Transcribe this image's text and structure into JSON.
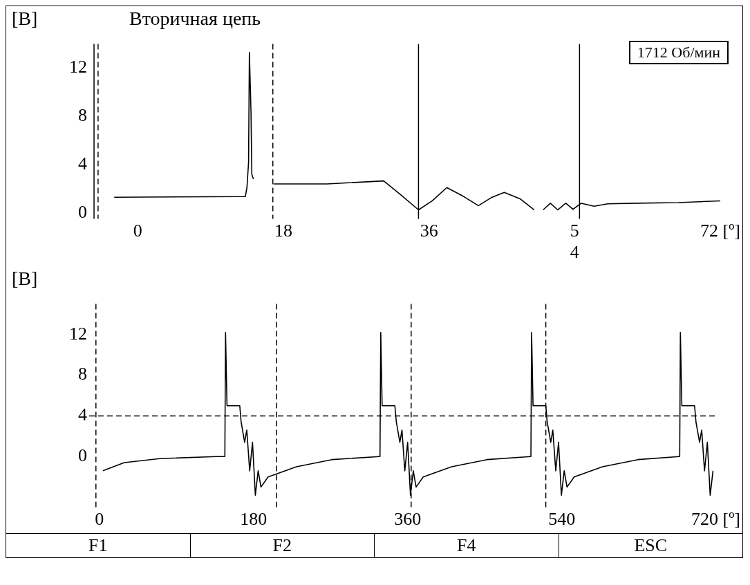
{
  "chart_data": [
    {
      "type": "line",
      "title": "Вторичная цепь",
      "ylabel": "[В]",
      "annotations": [
        "1712 Об/мин"
      ],
      "xlim": [
        -6,
        72
      ],
      "xticks": [
        0,
        18,
        36,
        {
          "value": 54,
          "label": "5\n4"
        },
        {
          "value": 72,
          "label": "72 [º]"
        }
      ],
      "ylim": [
        -0.5,
        14
      ],
      "yticks": [
        0,
        4,
        8,
        12
      ],
      "grid": false,
      "legend": false,
      "marker": "none",
      "line_style": "solid",
      "ref_lines": [
        {
          "axis": "x",
          "value": -5.4,
          "line_style": "solid",
          "color": "#000000"
        },
        {
          "axis": "x",
          "value": -4.9,
          "line_style": "dashed",
          "color": "#000000"
        },
        {
          "axis": "x",
          "value": 16.7,
          "line_style": "dashed",
          "color": "#000000"
        },
        {
          "axis": "x",
          "value": 34.7,
          "line_style": "solid",
          "color": "#000000"
        },
        {
          "axis": "x",
          "value": 54.6,
          "line_style": "solid",
          "color": "#000000"
        }
      ],
      "series": [
        {
          "color": "#000000",
          "x": [
            -2.9,
            13.3,
            13.5,
            13.7,
            13.8,
            14.0,
            14.1,
            14.3,
            15.5,
            16.8,
            23.4,
            30.4,
            32.5,
            34.7,
            36.4,
            38.2,
            40.3,
            42.1,
            43.8,
            45.3,
            47.3,
            49.0,
            49.6,
            50.1,
            51.0,
            51.9,
            52.9,
            53.8,
            54.8,
            56.4,
            58.1,
            61.6,
            66.8,
            72
          ],
          "values": [
            1.3,
            1.35,
            2.1,
            4.2,
            13.3,
            8.4,
            3.2,
            2.8,
            null,
            2.4,
            2.4,
            2.65,
            1.5,
            0.25,
            1.0,
            2.1,
            1.35,
            0.6,
            1.3,
            1.7,
            1.15,
            0.25,
            null,
            0.25,
            0.8,
            0.25,
            0.8,
            0.3,
            0.8,
            0.55,
            0.75,
            0.8,
            0.85,
            1.0
          ]
        }
      ]
    },
    {
      "type": "line",
      "ylabel": "[В]",
      "annotations": [
        "F1",
        "F2",
        "F4",
        "ESC"
      ],
      "xlim": [
        -12,
        720
      ],
      "xticks": [
        0,
        180,
        360,
        540,
        {
          "value": 720,
          "label": "720 [º]"
        }
      ],
      "ylim": [
        -5,
        15
      ],
      "yticks": [
        0,
        4,
        8,
        12
      ],
      "grid": false,
      "legend": false,
      "marker": "none",
      "line_style": "solid",
      "ref_lines": [
        {
          "axis": "y",
          "value": 4,
          "line_style": "dashed",
          "color": "#000000"
        },
        {
          "axis": "x",
          "value": -4.1,
          "line_style": "dashed",
          "color": "#000000"
        },
        {
          "axis": "x",
          "value": 206.9,
          "line_style": "dashed",
          "color": "#000000"
        },
        {
          "axis": "x",
          "value": 364.1,
          "line_style": "dashed",
          "color": "#000000"
        },
        {
          "axis": "x",
          "value": 521.4,
          "line_style": "dashed",
          "color": "#000000"
        }
      ],
      "series": [
        {
          "color": "#000000",
          "x": [
            4.1,
            29.0,
            70.3,
            136.6,
            146.5,
            147.3,
            149.0,
            163.9,
            165.5,
            169.6,
            172.1,
            175.5,
            178.8,
            182.1,
            185.4,
            188.7,
            197.0,
            230.1,
            271.5,
            327.0,
            327.7,
            328.6,
            330.2,
            345.1,
            346.8,
            350.9,
            353.4,
            356.7,
            360.0,
            363.3,
            366.6,
            369.9,
            378.2,
            411.3,
            452.7,
            503.2,
            504.0,
            504.8,
            506.5,
            521.4,
            523.0,
            527.2,
            529.6,
            533.0,
            536.3,
            539.6,
            542.9,
            546.2,
            554.5,
            587.6,
            629.0,
            677.0,
            677.8,
            678.6,
            680.3,
            695.2,
            696.8,
            701.0,
            703.5,
            706.8,
            710.1,
            713.4,
            716.7
          ],
          "values": [
            -1.4,
            -0.6,
            -0.2,
            0,
            0,
            12.2,
            5.0,
            5.0,
            3.4,
            1.4,
            2.6,
            -1.4,
            1.4,
            -3.8,
            -1.4,
            -3,
            -2,
            -1,
            -0.3,
            0,
            0,
            12.2,
            5.0,
            5.0,
            3.4,
            1.4,
            2.6,
            -1.4,
            1.4,
            -3.8,
            -1.4,
            -3,
            -2,
            -1,
            -0.3,
            0,
            0,
            12.2,
            5.0,
            5.0,
            3.4,
            1.4,
            2.6,
            -1.4,
            1.4,
            -3.8,
            -1.4,
            -3,
            -2,
            -1,
            -0.3,
            0,
            0,
            12.2,
            5.0,
            5.0,
            3.4,
            1.4,
            2.6,
            -1.4,
            1.4,
            -3.8,
            -1.4
          ]
        }
      ]
    }
  ]
}
